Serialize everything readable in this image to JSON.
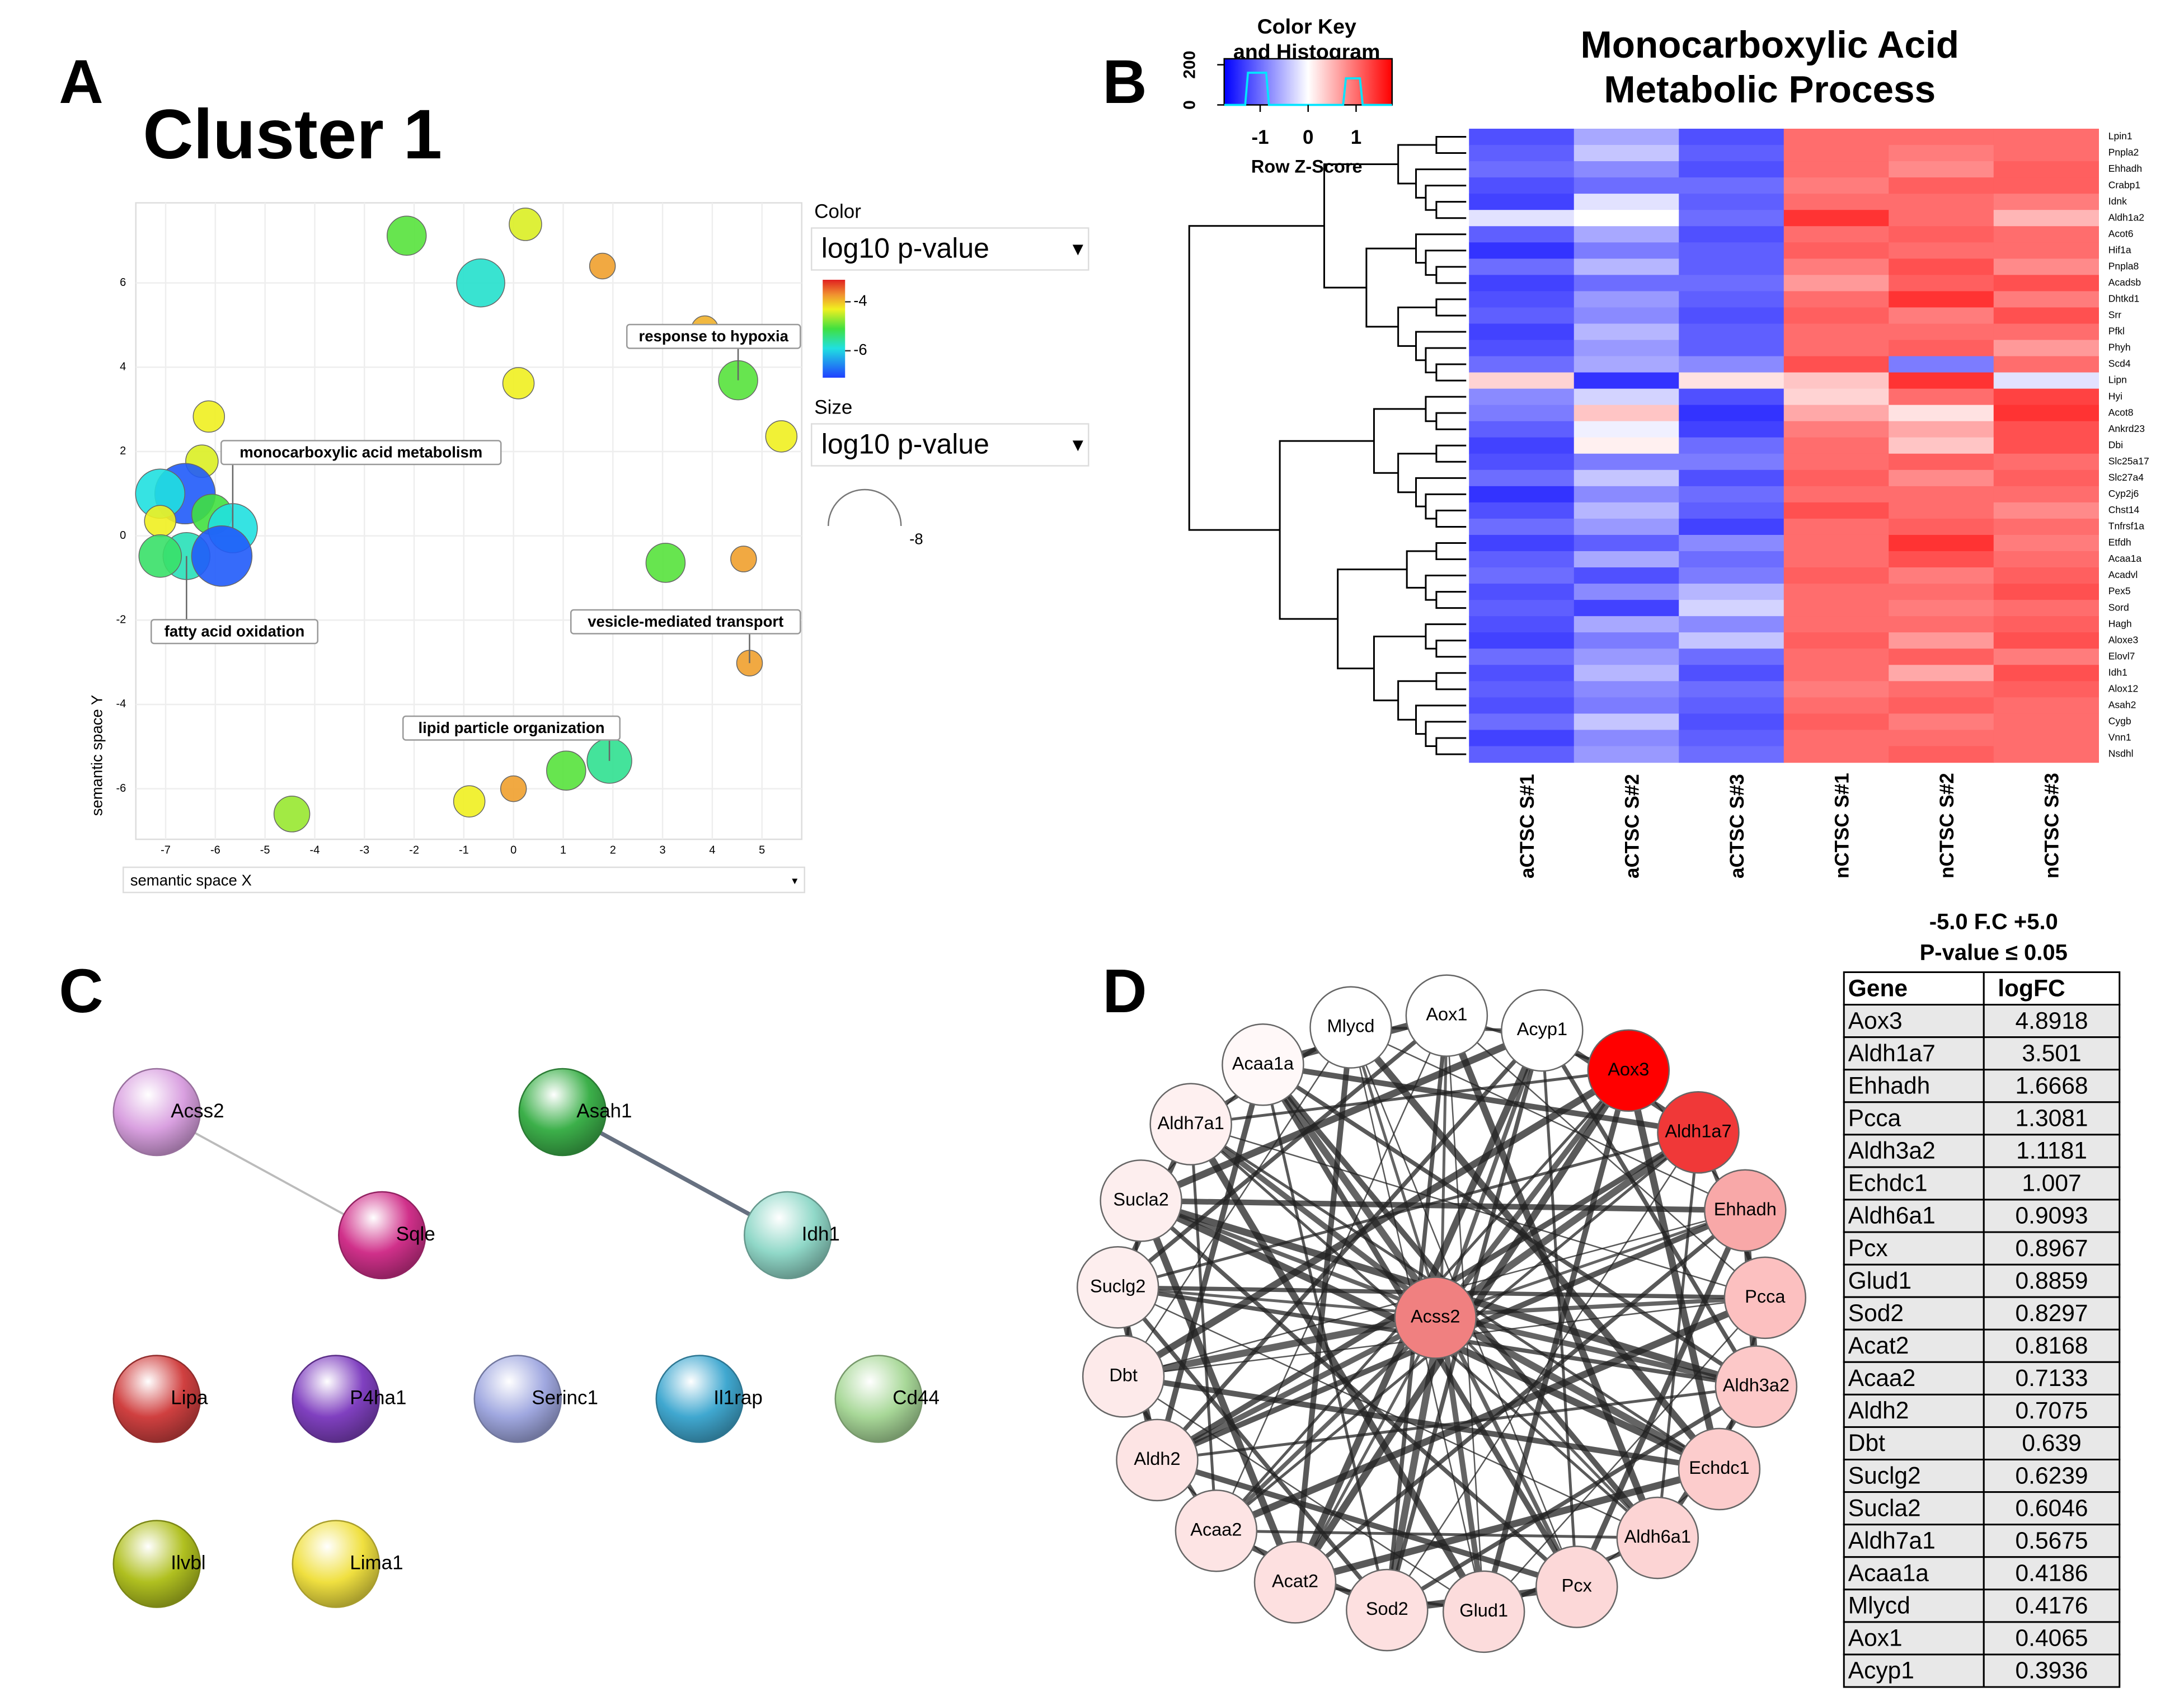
{
  "panel_a": {
    "letter": "A",
    "title": "Cluster 1",
    "x_label": "semantic space X",
    "y_label": "semantic space Y",
    "xlim": [
      -7.6,
      5.8
    ],
    "ylim": [
      -7.2,
      7.9
    ],
    "xticks": [
      -7,
      -6,
      -5,
      -4,
      -3,
      -2,
      -1,
      0,
      1,
      2,
      3,
      4,
      5
    ],
    "yticks": [
      -6,
      -4,
      -2,
      0,
      2,
      4,
      6
    ],
    "bubbles": [
      {
        "x": -2.15,
        "y": 7.12,
        "log10_p": -5.0
      },
      {
        "x": 0.24,
        "y": 7.39,
        "log10_p": -4.4
      },
      {
        "x": -0.66,
        "y": 6.0,
        "log10_p": -5.8
      },
      {
        "x": 1.79,
        "y": 6.4,
        "log10_p": -3.8
      },
      {
        "x": 3.85,
        "y": 4.9,
        "log10_p": -3.9
      },
      {
        "x": 4.52,
        "y": 3.69,
        "log10_p": -5.0
      },
      {
        "x": 0.1,
        "y": 3.62,
        "log10_p": -4.3
      },
      {
        "x": 5.39,
        "y": 2.36,
        "log10_p": -4.3
      },
      {
        "x": -6.13,
        "y": 2.83,
        "log10_p": -4.3
      },
      {
        "x": -6.27,
        "y": 1.77,
        "log10_p": -4.4
      },
      {
        "x": -6.61,
        "y": 1.0,
        "log10_p": -6.9
      },
      {
        "x": -7.11,
        "y": 1.0,
        "log10_p": -5.9
      },
      {
        "x": -6.07,
        "y": 0.51,
        "log10_p": -5.1
      },
      {
        "x": -5.65,
        "y": 0.18,
        "log10_p": -5.9
      },
      {
        "x": -7.11,
        "y": 0.35,
        "log10_p": -4.3
      },
      {
        "x": -6.58,
        "y": -0.48,
        "log10_p": -5.7
      },
      {
        "x": -7.11,
        "y": -0.48,
        "log10_p": -5.3
      },
      {
        "x": -5.87,
        "y": -0.48,
        "log10_p": -6.9
      },
      {
        "x": 3.06,
        "y": -0.64,
        "log10_p": -5.0
      },
      {
        "x": 4.63,
        "y": -0.55,
        "log10_p": -3.8
      },
      {
        "x": 4.75,
        "y": -3.02,
        "log10_p": -3.8
      },
      {
        "x": 1.93,
        "y": -5.34,
        "log10_p": -5.5
      },
      {
        "x": 1.06,
        "y": -5.57,
        "log10_p": -5.0
      },
      {
        "x": 0.0,
        "y": -6.0,
        "log10_p": -3.8
      },
      {
        "x": -0.89,
        "y": -6.3,
        "log10_p": -4.3
      },
      {
        "x": -4.46,
        "y": -6.6,
        "log10_p": -4.7
      }
    ],
    "labels": [
      "response to hypoxia",
      "monocarboxylic acid metabolism",
      "fatty acid oxidation",
      "vesicle-mediated transport",
      "lipid particle organization"
    ],
    "color_legend": {
      "title": "Color",
      "selector": "log10 p-value",
      "clim": [
        -3.1,
        -7.1
      ],
      "ticks": [
        -4,
        -6
      ]
    },
    "size_legend": {
      "title": "Size",
      "selector": "log10 p-value",
      "tick": -8
    }
  },
  "panel_b": {
    "letter": "B",
    "title_lines": [
      "Monocarboxylic Acid",
      "Metabolic Process"
    ],
    "color_key": {
      "title_lines": [
        "Color Key",
        "and Histogram"
      ],
      "label": "Row Z-Score",
      "range": [
        -1.75,
        1.75
      ],
      "ticks": [
        -1,
        0,
        1
      ],
      "hist_ylim": [
        0,
        230
      ],
      "hist_ticks": [
        0,
        200
      ]
    },
    "columns": [
      "aCTSC S#1",
      "aCTSC S#2",
      "aCTSC S#3",
      "nCTSC S#1",
      "nCTSC S#2",
      "nCTSC S#3"
    ],
    "rows": [
      "Lpin1",
      "Pnpla2",
      "Ehhadh",
      "Crabp1",
      "Idnk",
      "Aldh1a2",
      "Acot6",
      "Hif1a",
      "Pnpla8",
      "Acadsb",
      "Dhtkd1",
      "Srr",
      "Pfkl",
      "Phyh",
      "Scd4",
      "Lipn",
      "Hyi",
      "Acot8",
      "Ankrd23",
      "Dbi",
      "Slc25a17",
      "Slc27a4",
      "Cyp2j6",
      "Chst14",
      "Tnfrsf1a",
      "Etfdh",
      "Acaa1a",
      "Acadvl",
      "Pex5",
      "Sord",
      "Hagh",
      "Aloxe3",
      "Elovl7",
      "Idh1",
      "Alox12",
      "Asah2",
      "Cygb",
      "Vnn1",
      "Nsdhl"
    ],
    "matrix": [
      [
        -1.2,
        -0.6,
        -1.2,
        1.0,
        1.0,
        1.0
      ],
      [
        -1.1,
        -0.4,
        -1.1,
        1.0,
        0.9,
        1.0
      ],
      [
        -1.0,
        -0.8,
        -1.2,
        1.0,
        0.8,
        1.1
      ],
      [
        -1.2,
        -1.0,
        -1.0,
        0.9,
        1.1,
        1.1
      ],
      [
        -1.3,
        -0.2,
        -1.1,
        1.0,
        1.0,
        0.9
      ],
      [
        -0.2,
        0.0,
        -1.0,
        1.4,
        1.0,
        0.5
      ],
      [
        -1.1,
        -0.6,
        -1.2,
        1.0,
        1.1,
        1.0
      ],
      [
        -1.4,
        -0.9,
        -1.1,
        1.1,
        1.0,
        1.0
      ],
      [
        -1.0,
        -0.5,
        -1.1,
        0.9,
        1.2,
        0.8
      ],
      [
        -1.3,
        -1.0,
        -1.0,
        0.7,
        1.1,
        1.2
      ],
      [
        -1.2,
        -0.7,
        -1.1,
        1.0,
        1.4,
        0.9
      ],
      [
        -1.1,
        -0.8,
        -1.2,
        1.1,
        0.9,
        1.2
      ],
      [
        -1.3,
        -0.5,
        -1.1,
        1.0,
        1.0,
        1.0
      ],
      [
        -1.2,
        -0.7,
        -1.1,
        1.0,
        1.1,
        0.7
      ],
      [
        -1.0,
        -0.6,
        -0.8,
        1.2,
        -0.9,
        1.0
      ],
      [
        0.3,
        -1.4,
        0.2,
        0.4,
        1.4,
        -0.2
      ],
      [
        -0.8,
        -0.3,
        -1.2,
        0.3,
        1.0,
        1.3
      ],
      [
        -0.9,
        0.4,
        -1.4,
        0.6,
        0.2,
        1.4
      ],
      [
        -1.1,
        -0.1,
        -1.3,
        0.9,
        0.6,
        1.2
      ],
      [
        -1.3,
        0.1,
        -1.0,
        1.0,
        0.4,
        1.2
      ],
      [
        -1.2,
        -0.9,
        -0.9,
        1.0,
        1.1,
        1.0
      ],
      [
        -1.0,
        -0.4,
        -1.2,
        1.1,
        0.8,
        1.1
      ],
      [
        -1.4,
        -0.8,
        -1.0,
        1.0,
        1.0,
        1.0
      ],
      [
        -1.2,
        -0.5,
        -1.1,
        1.2,
        1.0,
        0.8
      ],
      [
        -1.0,
        -0.7,
        -1.3,
        1.0,
        1.1,
        1.0
      ],
      [
        -1.3,
        -1.1,
        -0.8,
        1.0,
        1.4,
        0.9
      ],
      [
        -1.1,
        -0.6,
        -1.0,
        1.0,
        1.2,
        1.0
      ],
      [
        -1.0,
        -1.2,
        -0.9,
        1.1,
        0.9,
        1.1
      ],
      [
        -1.2,
        -0.8,
        -0.5,
        1.0,
        1.0,
        1.2
      ],
      [
        -1.1,
        -1.3,
        -0.3,
        1.0,
        0.9,
        1.0
      ],
      [
        -1.2,
        -0.6,
        -0.8,
        1.0,
        1.0,
        1.1
      ],
      [
        -1.3,
        -0.9,
        -0.4,
        1.1,
        0.7,
        1.2
      ],
      [
        -1.0,
        -0.7,
        -1.0,
        1.0,
        1.1,
        0.9
      ],
      [
        -1.2,
        -0.5,
        -1.2,
        1.0,
        0.6,
        1.2
      ],
      [
        -1.1,
        -0.8,
        -1.0,
        0.9,
        1.0,
        1.1
      ],
      [
        -1.2,
        -0.9,
        -1.1,
        1.0,
        1.1,
        1.0
      ],
      [
        -1.0,
        -0.4,
        -1.2,
        1.1,
        0.9,
        1.0
      ],
      [
        -1.3,
        -0.8,
        -1.1,
        1.0,
        1.0,
        1.0
      ],
      [
        -1.1,
        -0.7,
        -1.0,
        1.0,
        1.1,
        1.0
      ]
    ]
  },
  "panel_c": {
    "letter": "C",
    "nodes": [
      {
        "label": "Acss2",
        "color": "#d9a0e0"
      },
      {
        "label": "Sqle",
        "color": "#d0308a"
      },
      {
        "label": "Asah1",
        "color": "#3cb04a"
      },
      {
        "label": "Idh1",
        "color": "#90d8c8"
      },
      {
        "label": "Lipa",
        "color": "#d04040"
      },
      {
        "label": "P4ha1",
        "color": "#8040c0"
      },
      {
        "label": "Serinc1",
        "color": "#a0a8e0"
      },
      {
        "label": "Il1rap",
        "color": "#40a8d0"
      },
      {
        "label": "Cd44",
        "color": "#a8d898"
      },
      {
        "label": "Ilvbl",
        "color": "#b0c020"
      },
      {
        "label": "Lima1",
        "color": "#f0e040"
      }
    ],
    "edges": [
      {
        "from": "Acss2",
        "to": "Sqle",
        "color": "#bbbbbb"
      },
      {
        "from": "Asah1",
        "to": "Idh1",
        "color": "#667080"
      }
    ]
  },
  "panel_d": {
    "letter": "D",
    "center": {
      "label": "Acss2",
      "color": "#f08080"
    },
    "ring": [
      {
        "label": "Aox1",
        "color": "#ffffff"
      },
      {
        "label": "Acyp1",
        "color": "#ffffff"
      },
      {
        "label": "Aox3",
        "color": "#ff0000"
      },
      {
        "label": "Aldh1a7",
        "color": "#f03838"
      },
      {
        "label": "Ehhadh",
        "color": "#f8a8a8"
      },
      {
        "label": "Pcca",
        "color": "#fcc0c0"
      },
      {
        "label": "Aldh3a2",
        "color": "#fcc8c8"
      },
      {
        "label": "Echdc1",
        "color": "#fccccc"
      },
      {
        "label": "Aldh6a1",
        "color": "#fcd4d4"
      },
      {
        "label": "Pcx",
        "color": "#fcd8d8"
      },
      {
        "label": "Glud1",
        "color": "#fcdcdc"
      },
      {
        "label": "Sod2",
        "color": "#fde0e0"
      },
      {
        "label": "Acat2",
        "color": "#fde0e0"
      },
      {
        "label": "Acaa2",
        "color": "#fde4e4"
      },
      {
        "label": "Aldh2",
        "color": "#fde4e4"
      },
      {
        "label": "Dbt",
        "color": "#fdeaea"
      },
      {
        "label": "Suclg2",
        "color": "#fdeeee"
      },
      {
        "label": "Sucla2",
        "color": "#fdeeee"
      },
      {
        "label": "Aldh7a1",
        "color": "#fef0f0"
      },
      {
        "label": "Acaa1a",
        "color": "#fff8f8"
      },
      {
        "label": "Mlycd",
        "color": "#ffffff"
      }
    ],
    "table": {
      "caption_lines": [
        "-5.0 F.C +5.0",
        "P-value ≤ 0.05"
      ],
      "header": [
        "Gene",
        "logFC"
      ],
      "rows": [
        [
          "Aox3",
          "4.8918"
        ],
        [
          "Aldh1a7",
          "3.501"
        ],
        [
          "Ehhadh",
          "1.6668"
        ],
        [
          "Pcca",
          "1.3081"
        ],
        [
          "Aldh3a2",
          "1.1181"
        ],
        [
          "Echdc1",
          "1.007"
        ],
        [
          "Aldh6a1",
          "0.9093"
        ],
        [
          "Pcx",
          "0.8967"
        ],
        [
          "Glud1",
          "0.8859"
        ],
        [
          "Sod2",
          "0.8297"
        ],
        [
          "Acat2",
          "0.8168"
        ],
        [
          "Acaa2",
          "0.7133"
        ],
        [
          "Aldh2",
          "0.7075"
        ],
        [
          "Dbt",
          "0.639"
        ],
        [
          "Suclg2",
          "0.6239"
        ],
        [
          "Sucla2",
          "0.6046"
        ],
        [
          "Aldh7a1",
          "0.5675"
        ],
        [
          "Acaa1a",
          "0.4186"
        ],
        [
          "Mlycd",
          "0.4176"
        ],
        [
          "Aox1",
          "0.4065"
        ],
        [
          "Acyp1",
          "0.3936"
        ]
      ]
    }
  }
}
